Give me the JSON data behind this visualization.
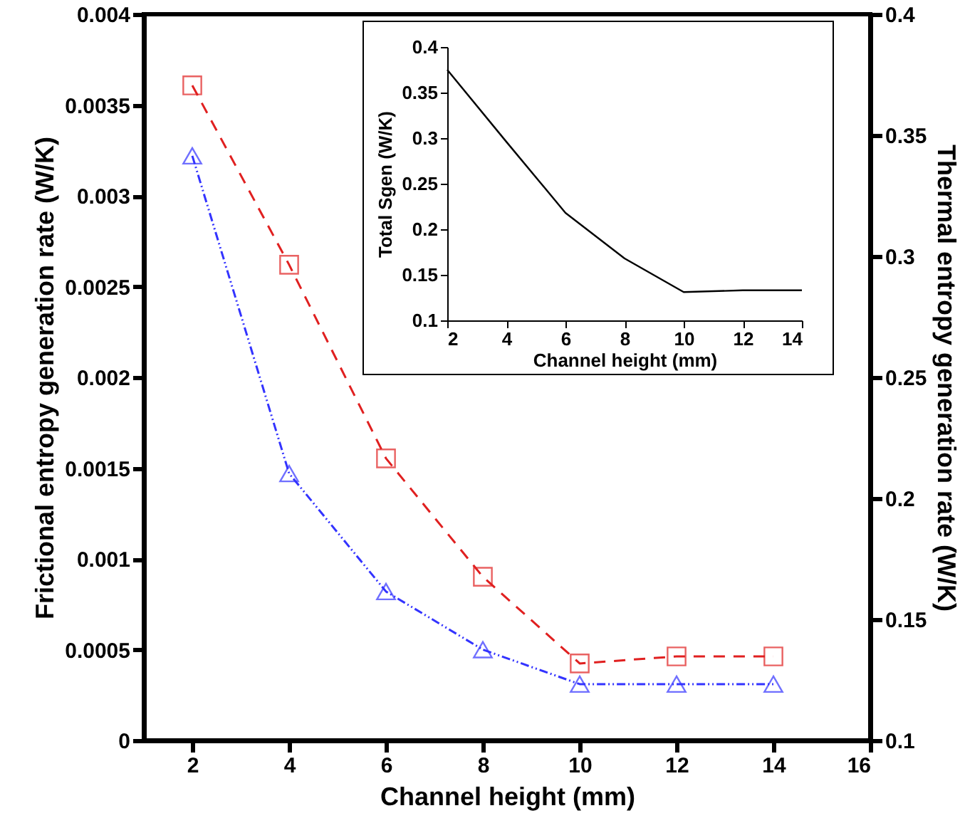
{
  "chart_data": [
    {
      "type": "line",
      "xlabel": "Channel height (mm)",
      "ylabel": "Frictional entropy generation rate (W/K)",
      "y2label": "Thermal entropy generation rate (W/K)",
      "x": [
        2,
        4,
        6,
        8,
        10,
        12,
        14
      ],
      "xlim": [
        1,
        16
      ],
      "xticks": [
        2,
        4,
        6,
        8,
        10,
        12,
        14,
        16
      ],
      "ylim": [
        0,
        0.004
      ],
      "yticks": [
        0,
        0.0005,
        0.001,
        0.0015,
        0.002,
        0.0025,
        0.003,
        0.0035,
        0.004
      ],
      "y2lim": [
        0.1,
        0.4
      ],
      "y2ticks": [
        0.1,
        0.15,
        0.2,
        0.25,
        0.3,
        0.35,
        0.4
      ],
      "grid": false,
      "series": [
        {
          "color": "#3333ff",
          "marker": "triangle",
          "line_style": "dotted",
          "values": [
            0.00322,
            0.00147,
            0.00082,
            0.0005,
            0.00031,
            0.00031,
            0.00031
          ]
        },
        {
          "color": "#e02020",
          "marker": "square",
          "line_style": "dashed",
          "axis": "y2",
          "values": [
            0.3706,
            0.2965,
            0.2165,
            0.1676,
            0.1318,
            0.1347,
            0.1347
          ]
        }
      ]
    },
    {
      "type": "line",
      "xlabel": "Channel height (mm)",
      "ylabel": "Total Sgen (W/K)",
      "x": [
        2,
        4,
        6,
        8,
        10,
        12,
        14
      ],
      "xlim": [
        2,
        14
      ],
      "xticks": [
        2,
        4,
        6,
        8,
        10,
        12,
        14
      ],
      "ylim": [
        0.1,
        0.4
      ],
      "yticks": [
        0.1,
        0.15,
        0.2,
        0.25,
        0.3,
        0.35,
        0.4
      ],
      "grid": false,
      "series": [
        {
          "color": "#000000",
          "marker": "none",
          "line_style": "solid",
          "values": [
            0.375,
            0.296,
            0.218,
            0.168,
            0.131,
            0.133,
            0.133
          ]
        }
      ]
    }
  ]
}
